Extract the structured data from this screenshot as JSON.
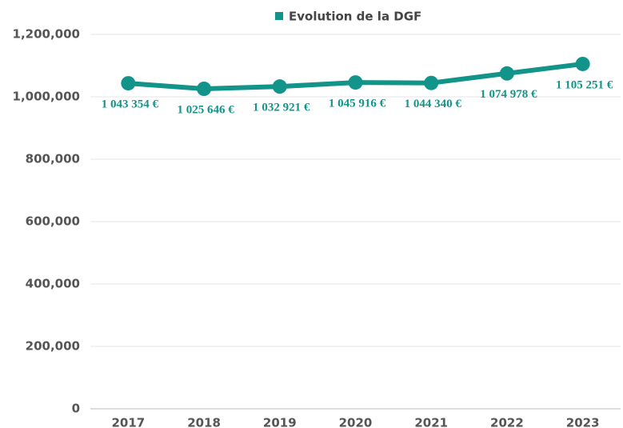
{
  "chart_data": {
    "type": "line",
    "series": [
      {
        "name": "Evolution de la DGF",
        "color": "#12948a",
        "values": [
          1043354,
          1025646,
          1032921,
          1045916,
          1044340,
          1074978,
          1105251
        ],
        "value_labels": [
          "1 043 354 €",
          "1 025 646 €",
          "1 032 921 €",
          "1 045 916 €",
          "1 044 340 €",
          "1 074 978 €",
          "1 105 251 €"
        ]
      }
    ],
    "categories": [
      "2017",
      "2018",
      "2019",
      "2020",
      "2021",
      "2022",
      "2023"
    ],
    "ylim": [
      0,
      1200000
    ],
    "yticks": [
      0,
      {
        "value": 200000,
        "label": "200,000"
      },
      {
        "value": 400000,
        "label": "400,000"
      },
      {
        "value": 600000,
        "label": "600,000"
      },
      {
        "value": 800000,
        "label": "800,000"
      },
      {
        "value": 1000000,
        "label": "1,000,000"
      },
      {
        "value": 1200000,
        "label": "1,200,000"
      }
    ],
    "grid": true,
    "legend": "top"
  }
}
